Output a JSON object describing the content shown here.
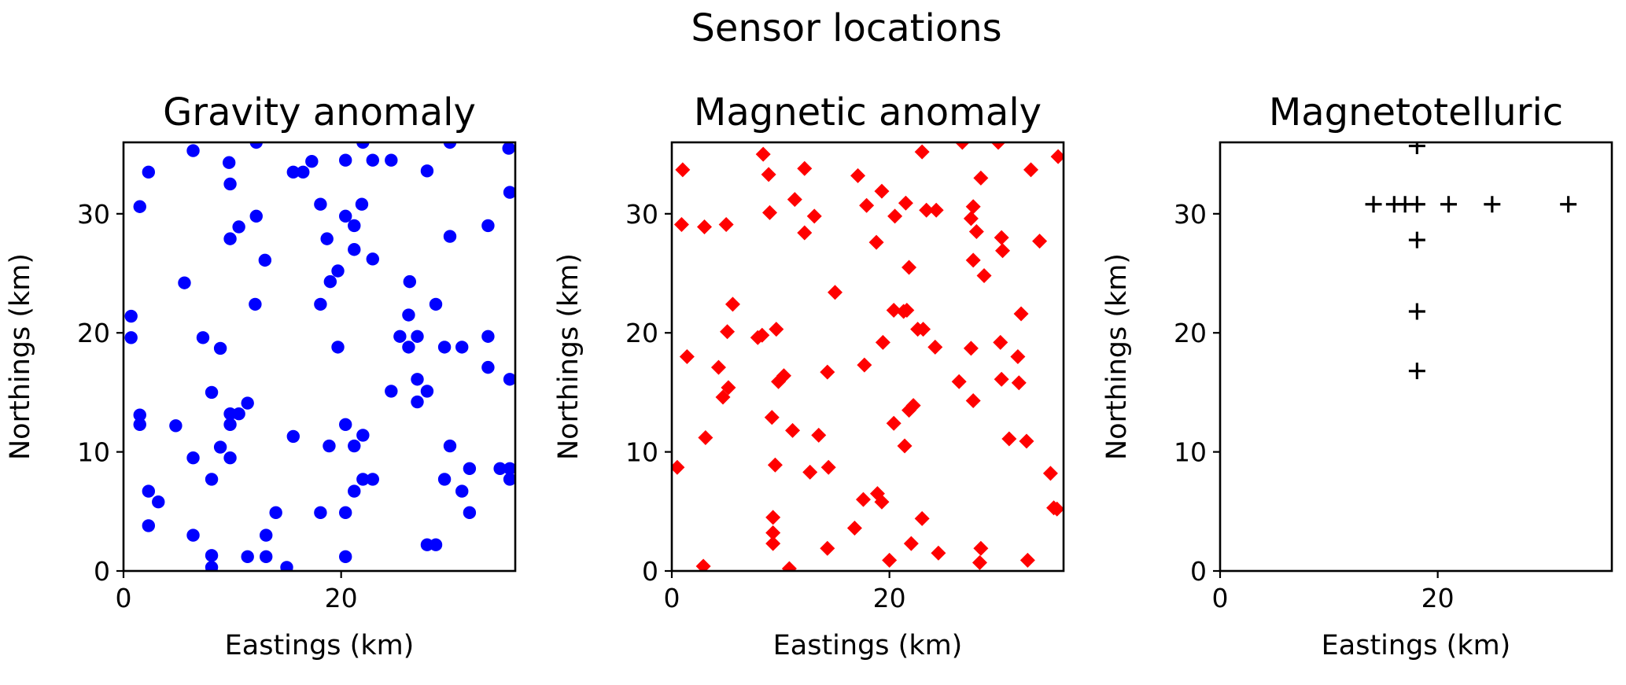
{
  "figure": {
    "title": "Sensor locations"
  },
  "chart_data": [
    {
      "type": "scatter",
      "title": "Gravity anomaly",
      "xlabel": "Eastings (km)",
      "ylabel": "Northings (km)",
      "xlim": [
        0,
        36
      ],
      "ylim": [
        0,
        36
      ],
      "xticks": [
        0,
        20
      ],
      "yticks": [
        0,
        10,
        20,
        30
      ],
      "grid": false,
      "marker": "circle",
      "color": "#0000ff",
      "points": [
        [
          6.4,
          35.3
        ],
        [
          12.2,
          36.0
        ],
        [
          22.0,
          36.0
        ],
        [
          30.0,
          36.0
        ],
        [
          35.4,
          35.5
        ],
        [
          2.3,
          33.5
        ],
        [
          9.7,
          34.3
        ],
        [
          15.6,
          33.5
        ],
        [
          16.5,
          33.5
        ],
        [
          17.3,
          34.4
        ],
        [
          20.4,
          34.5
        ],
        [
          22.9,
          34.5
        ],
        [
          24.6,
          34.5
        ],
        [
          27.9,
          33.6
        ],
        [
          9.8,
          32.5
        ],
        [
          35.5,
          31.8
        ],
        [
          1.5,
          30.6
        ],
        [
          12.2,
          29.8
        ],
        [
          18.1,
          30.8
        ],
        [
          20.4,
          29.8
        ],
        [
          21.9,
          30.8
        ],
        [
          10.6,
          28.9
        ],
        [
          21.2,
          29.0
        ],
        [
          33.5,
          29.0
        ],
        [
          9.8,
          27.9
        ],
        [
          18.7,
          27.9
        ],
        [
          30.0,
          28.1
        ],
        [
          21.2,
          27.0
        ],
        [
          13.0,
          26.1
        ],
        [
          22.9,
          26.2
        ],
        [
          19.7,
          25.2
        ],
        [
          19.0,
          24.3
        ],
        [
          26.3,
          24.3
        ],
        [
          5.6,
          24.2
        ],
        [
          12.1,
          22.4
        ],
        [
          18.1,
          22.4
        ],
        [
          28.7,
          22.4
        ],
        [
          0.7,
          21.4
        ],
        [
          26.2,
          21.5
        ],
        [
          0.7,
          19.6
        ],
        [
          7.3,
          19.6
        ],
        [
          25.4,
          19.7
        ],
        [
          27.0,
          19.7
        ],
        [
          33.5,
          19.7
        ],
        [
          8.9,
          18.7
        ],
        [
          19.7,
          18.8
        ],
        [
          26.2,
          18.8
        ],
        [
          29.5,
          18.8
        ],
        [
          31.1,
          18.8
        ],
        [
          33.5,
          17.1
        ],
        [
          27.0,
          16.1
        ],
        [
          35.5,
          16.1
        ],
        [
          24.6,
          15.1
        ],
        [
          27.9,
          15.1
        ],
        [
          8.1,
          15.0
        ],
        [
          27.0,
          14.2
        ],
        [
          11.4,
          14.1
        ],
        [
          9.8,
          13.2
        ],
        [
          10.6,
          13.2
        ],
        [
          1.5,
          13.1
        ],
        [
          1.5,
          12.3
        ],
        [
          4.8,
          12.2
        ],
        [
          9.8,
          12.3
        ],
        [
          20.4,
          12.3
        ],
        [
          15.6,
          11.3
        ],
        [
          22.0,
          11.4
        ],
        [
          8.9,
          10.4
        ],
        [
          18.9,
          10.5
        ],
        [
          21.2,
          10.5
        ],
        [
          30.0,
          10.5
        ],
        [
          6.4,
          9.5
        ],
        [
          9.8,
          9.5
        ],
        [
          31.8,
          8.6
        ],
        [
          34.6,
          8.6
        ],
        [
          35.5,
          8.6
        ],
        [
          8.1,
          7.7
        ],
        [
          22.0,
          7.7
        ],
        [
          22.9,
          7.7
        ],
        [
          29.5,
          7.7
        ],
        [
          35.5,
          7.7
        ],
        [
          2.3,
          6.7
        ],
        [
          21.2,
          6.7
        ],
        [
          31.1,
          6.7
        ],
        [
          3.2,
          5.8
        ],
        [
          14.0,
          4.9
        ],
        [
          18.1,
          4.9
        ],
        [
          20.4,
          4.9
        ],
        [
          31.8,
          4.9
        ],
        [
          2.3,
          3.8
        ],
        [
          6.4,
          3.0
        ],
        [
          13.1,
          3.0
        ],
        [
          27.9,
          2.2
        ],
        [
          28.7,
          2.2
        ],
        [
          8.1,
          1.3
        ],
        [
          11.4,
          1.2
        ],
        [
          13.1,
          1.2
        ],
        [
          20.4,
          1.2
        ],
        [
          8.1,
          0.3
        ],
        [
          15.0,
          0.3
        ]
      ]
    },
    {
      "type": "scatter",
      "title": "Magnetic anomaly",
      "xlabel": "Eastings (km)",
      "ylabel": "Northings (km)",
      "xlim": [
        0,
        36
      ],
      "ylim": [
        0,
        36
      ],
      "xticks": [
        0,
        20
      ],
      "yticks": [
        0,
        10,
        20,
        30
      ],
      "grid": false,
      "marker": "diamond",
      "color": "#ff0000",
      "points": [
        [
          23.0,
          35.2
        ],
        [
          26.7,
          36.0
        ],
        [
          30.0,
          36.0
        ],
        [
          35.5,
          34.8
        ],
        [
          8.4,
          35.0
        ],
        [
          1.0,
          33.7
        ],
        [
          12.2,
          33.8
        ],
        [
          8.9,
          33.3
        ],
        [
          17.1,
          33.2
        ],
        [
          28.4,
          33.0
        ],
        [
          33.0,
          33.7
        ],
        [
          19.3,
          31.9
        ],
        [
          11.3,
          31.2
        ],
        [
          21.5,
          30.9
        ],
        [
          17.9,
          30.7
        ],
        [
          23.4,
          30.3
        ],
        [
          24.3,
          30.3
        ],
        [
          27.7,
          30.6
        ],
        [
          9.0,
          30.1
        ],
        [
          13.1,
          29.8
        ],
        [
          20.5,
          29.8
        ],
        [
          27.5,
          29.6
        ],
        [
          0.9,
          29.1
        ],
        [
          3.0,
          28.9
        ],
        [
          5.0,
          29.1
        ],
        [
          28.0,
          28.5
        ],
        [
          12.2,
          28.4
        ],
        [
          30.3,
          28.0
        ],
        [
          18.8,
          27.6
        ],
        [
          33.8,
          27.7
        ],
        [
          30.4,
          26.9
        ],
        [
          27.7,
          26.1
        ],
        [
          21.8,
          25.5
        ],
        [
          28.7,
          24.8
        ],
        [
          15.0,
          23.4
        ],
        [
          5.6,
          22.4
        ],
        [
          20.4,
          21.9
        ],
        [
          21.3,
          21.8
        ],
        [
          21.6,
          21.9
        ],
        [
          32.1,
          21.6
        ],
        [
          22.6,
          20.3
        ],
        [
          23.1,
          20.3
        ],
        [
          5.1,
          20.1
        ],
        [
          9.6,
          20.3
        ],
        [
          7.9,
          19.6
        ],
        [
          8.3,
          19.8
        ],
        [
          19.4,
          19.2
        ],
        [
          24.2,
          18.8
        ],
        [
          27.5,
          18.7
        ],
        [
          30.2,
          19.2
        ],
        [
          1.4,
          18.0
        ],
        [
          31.8,
          18.0
        ],
        [
          17.7,
          17.3
        ],
        [
          4.3,
          17.1
        ],
        [
          10.3,
          16.4
        ],
        [
          14.3,
          16.7
        ],
        [
          9.8,
          15.9
        ],
        [
          26.4,
          15.9
        ],
        [
          30.3,
          16.1
        ],
        [
          31.9,
          15.8
        ],
        [
          5.2,
          15.4
        ],
        [
          4.7,
          14.6
        ],
        [
          27.7,
          14.3
        ],
        [
          22.2,
          13.9
        ],
        [
          21.8,
          13.5
        ],
        [
          9.2,
          12.9
        ],
        [
          20.4,
          12.4
        ],
        [
          11.1,
          11.8
        ],
        [
          13.5,
          11.4
        ],
        [
          3.1,
          11.2
        ],
        [
          31.0,
          11.1
        ],
        [
          32.6,
          10.9
        ],
        [
          21.4,
          10.5
        ],
        [
          0.5,
          8.7
        ],
        [
          9.5,
          8.9
        ],
        [
          14.4,
          8.7
        ],
        [
          12.7,
          8.3
        ],
        [
          34.8,
          8.2
        ],
        [
          18.9,
          6.5
        ],
        [
          17.6,
          6.0
        ],
        [
          19.3,
          5.8
        ],
        [
          35.1,
          5.3
        ],
        [
          35.4,
          5.2
        ],
        [
          9.3,
          4.5
        ],
        [
          16.8,
          3.6
        ],
        [
          9.3,
          3.2
        ],
        [
          23.0,
          4.4
        ],
        [
          9.3,
          2.3
        ],
        [
          22.0,
          2.3
        ],
        [
          14.3,
          1.9
        ],
        [
          28.4,
          1.9
        ],
        [
          24.5,
          1.5
        ],
        [
          20.0,
          0.9
        ],
        [
          32.7,
          0.9
        ],
        [
          28.3,
          0.7
        ],
        [
          2.9,
          0.4
        ],
        [
          10.8,
          0.2
        ]
      ]
    },
    {
      "type": "scatter",
      "title": "Magnetotelluric",
      "xlabel": "Eastings (km)",
      "ylabel": "Northings (km)",
      "xlim": [
        0,
        36
      ],
      "ylim": [
        0,
        36
      ],
      "xticks": [
        0,
        20
      ],
      "yticks": [
        0,
        10,
        20,
        30
      ],
      "grid": false,
      "marker": "plus",
      "color": "#000000",
      "points": [
        [
          18.1,
          35.7
        ],
        [
          14.1,
          30.8
        ],
        [
          16.0,
          30.8
        ],
        [
          17.0,
          30.8
        ],
        [
          18.1,
          30.8
        ],
        [
          21.0,
          30.8
        ],
        [
          25.0,
          30.8
        ],
        [
          32.0,
          30.8
        ],
        [
          18.1,
          27.8
        ],
        [
          18.1,
          21.8
        ],
        [
          18.1,
          16.8
        ]
      ]
    }
  ]
}
